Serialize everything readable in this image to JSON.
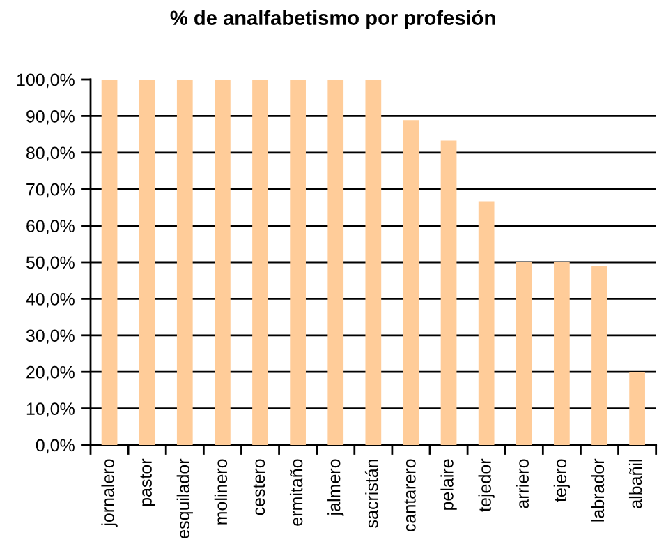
{
  "chart_data": {
    "type": "bar",
    "title": "% de analfabetismo por profesión",
    "categories": [
      "jornalero",
      "pastor",
      "esquilador",
      "molinero",
      "cestero",
      "ermitaño",
      "jalmero",
      "sacristán",
      "cantarero",
      "pelaire",
      "tejedor",
      "arriero",
      "tejero",
      "labrador",
      "albañil"
    ],
    "values": [
      100,
      100,
      100,
      100,
      100,
      100,
      100,
      100,
      88.9,
      83.3,
      66.7,
      50,
      50,
      48.9,
      20
    ],
    "color": "#ffcc99",
    "ylim": [
      0,
      100
    ],
    "yticks": [
      {
        "value": 0,
        "label": "0,0%"
      },
      {
        "value": 10,
        "label": "10,0%"
      },
      {
        "value": 20,
        "label": "20,0%"
      },
      {
        "value": 30,
        "label": "30,0%"
      },
      {
        "value": 40,
        "label": "40,0%"
      },
      {
        "value": 50,
        "label": "50,0%"
      },
      {
        "value": 60,
        "label": "60,0%"
      },
      {
        "value": 70,
        "label": "70,0%"
      },
      {
        "value": 80,
        "label": "80,0%"
      },
      {
        "value": 90,
        "label": "90,0%"
      },
      {
        "value": 100,
        "label": "100,0%"
      }
    ],
    "grid": "y",
    "legend": false
  }
}
